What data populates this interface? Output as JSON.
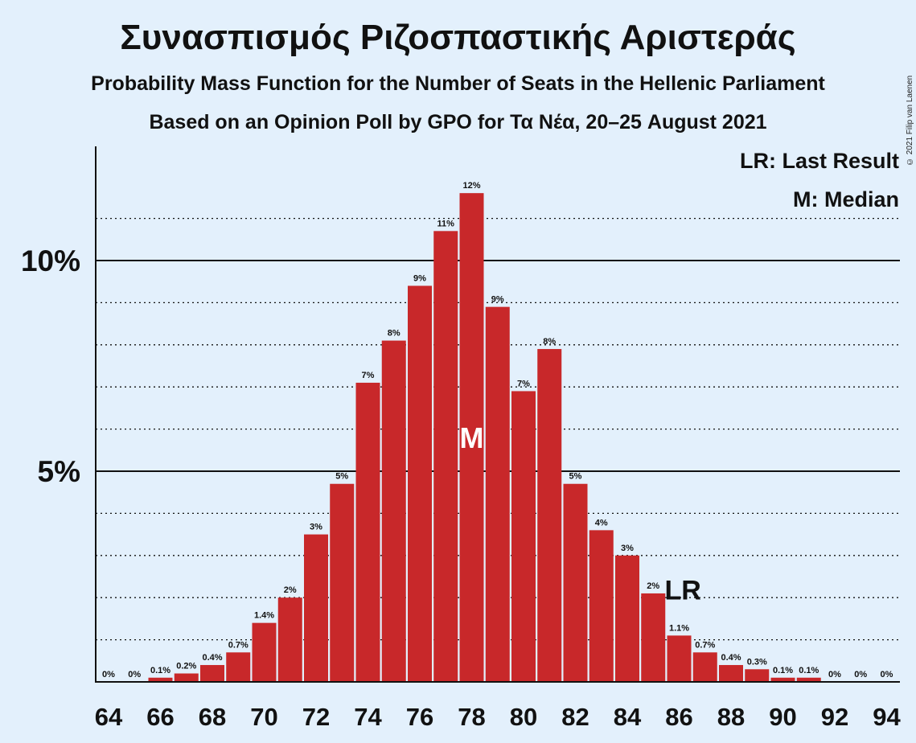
{
  "title": "Συνασπισμός Ριζοσπαστικής Αριστεράς",
  "subtitle": "Probability Mass Function for the Number of Seats in the Hellenic Parliament",
  "subtitle2": "Based on an Opinion Poll by GPO for Τα Νέα, 20–25 August 2021",
  "copyright": "© 2021 Filip van Laenen",
  "colors": {
    "bar": "#c8282a",
    "background": "#e3f0fc",
    "axis": "#111111"
  },
  "chart_data": {
    "type": "bar",
    "title": "Συνασπισμός Ριζοσπαστικής Αριστεράς",
    "xlabel": "",
    "ylabel": "",
    "categories": [
      64,
      65,
      66,
      67,
      68,
      69,
      70,
      71,
      72,
      73,
      74,
      75,
      76,
      77,
      78,
      79,
      80,
      81,
      82,
      83,
      84,
      85,
      86,
      87,
      88,
      89,
      90,
      91,
      92,
      93,
      94
    ],
    "values": [
      0,
      0,
      0.1,
      0.2,
      0.4,
      0.7,
      1.4,
      2.0,
      3.5,
      4.7,
      7.1,
      8.1,
      9.4,
      10.7,
      11.6,
      8.9,
      6.9,
      7.9,
      4.7,
      3.6,
      3.0,
      2.1,
      1.1,
      0.7,
      0.4,
      0.3,
      0.1,
      0.1,
      0,
      0,
      0
    ],
    "value_labels": [
      "0%",
      "0%",
      "0.1%",
      "0.2%",
      "0.4%",
      "0.7%",
      "1.4%",
      "2%",
      "3%",
      "5%",
      "7%",
      "8%",
      "9%",
      "11%",
      "12%",
      "9%",
      "7%",
      "8%",
      "5%",
      "4%",
      "3%",
      "2%",
      "1.1%",
      "0.7%",
      "0.4%",
      "0.3%",
      "0.1%",
      "0.1%",
      "0%",
      "0%",
      "0%"
    ],
    "x_tick_labels": [
      "64",
      "66",
      "68",
      "70",
      "72",
      "74",
      "76",
      "78",
      "80",
      "82",
      "84",
      "86",
      "88",
      "90",
      "92",
      "94"
    ],
    "y_tick_labels": [
      {
        "value": 5,
        "label": "5%"
      },
      {
        "value": 10,
        "label": "10%"
      }
    ],
    "ylim": [
      0,
      12.6
    ],
    "grid": "dotted every 1%, solid at 5% and 10%",
    "median": {
      "seats": 78,
      "marker": "M"
    },
    "last_result": {
      "seats": 86,
      "marker": "LR"
    },
    "legend": [
      "LR: Last Result",
      "M: Median"
    ],
    "legend_position": "top-right"
  }
}
